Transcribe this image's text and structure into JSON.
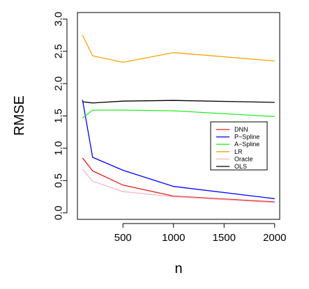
{
  "chart_data": {
    "type": "line",
    "xlabel": "n",
    "ylabel": "RMSE",
    "xlim": [
      50,
      2050
    ],
    "ylim": [
      -0.1,
      3.1
    ],
    "x_ticks": [
      500,
      1000,
      1500,
      2000
    ],
    "y_ticks": [
      0.0,
      0.5,
      1.0,
      1.5,
      2.0,
      2.5,
      3.0
    ],
    "x_tick_labels": [
      "500",
      "1000",
      "1500",
      "2000"
    ],
    "y_tick_labels": [
      "0.0",
      "0.5",
      "1.0",
      "1.5",
      "2.0",
      "2.5",
      "3.0"
    ],
    "grid": false,
    "legend_position": "right",
    "series": [
      {
        "name": "DNN",
        "color": "#e41a1c",
        "x": [
          100,
          200,
          500,
          1000,
          2000
        ],
        "y": [
          0.85,
          0.65,
          0.43,
          0.26,
          0.17
        ]
      },
      {
        "name": "P−Spline",
        "color": "#0000ff",
        "x": [
          100,
          200,
          500,
          1000,
          2000
        ],
        "y": [
          1.75,
          0.86,
          0.66,
          0.41,
          0.22
        ]
      },
      {
        "name": "A−Spline",
        "color": "#22ee22",
        "x": [
          100,
          200,
          500,
          1000,
          2000
        ],
        "y": [
          1.47,
          1.59,
          1.59,
          1.58,
          1.49
        ]
      },
      {
        "name": "LR",
        "color": "#f5a300",
        "x": [
          100,
          200,
          500,
          1000,
          2000
        ],
        "y": [
          2.75,
          2.43,
          2.33,
          2.48,
          2.35
        ]
      },
      {
        "name": "Oracle",
        "color": "#f4b6c2",
        "x": [
          100,
          200,
          500,
          1000,
          2000
        ],
        "y": [
          0.68,
          0.49,
          0.33,
          0.25,
          0.16
        ]
      },
      {
        "name": "OLS",
        "color": "#000000",
        "x": [
          100,
          200,
          500,
          1000,
          2000
        ],
        "y": [
          1.72,
          1.7,
          1.73,
          1.74,
          1.71
        ]
      }
    ]
  }
}
